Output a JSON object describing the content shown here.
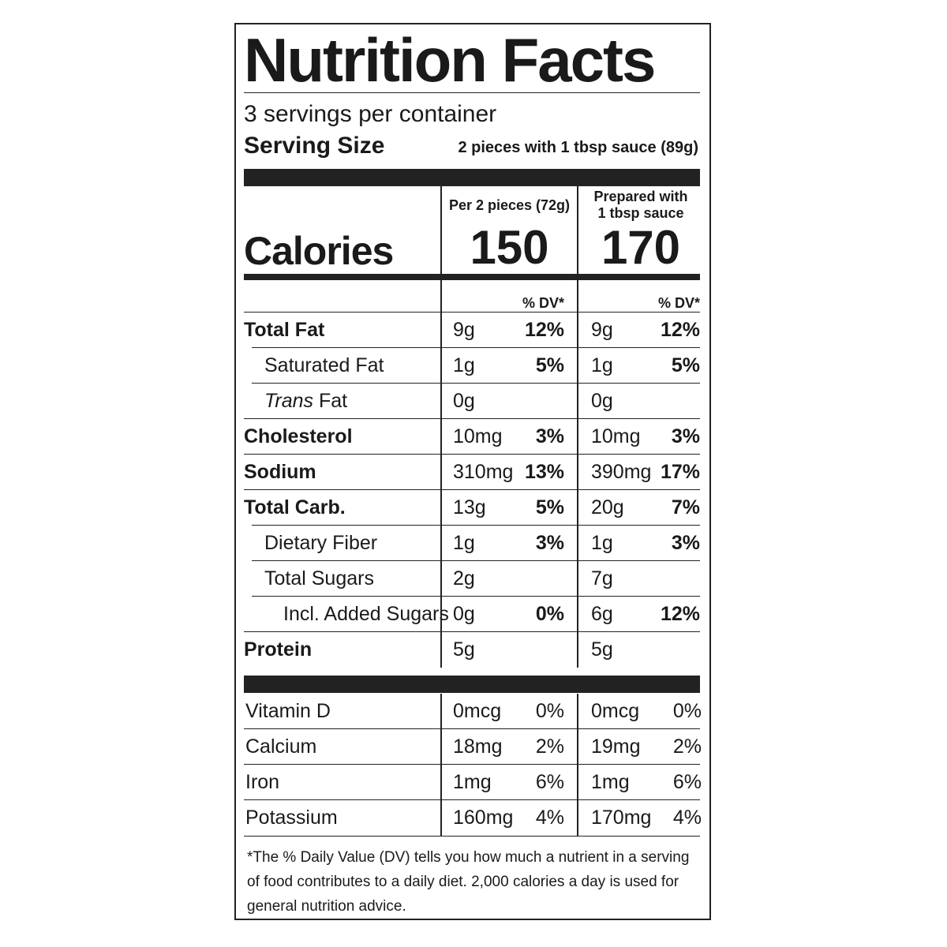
{
  "title": "Nutrition Facts",
  "servings_per_container": "3 servings per container",
  "serving_size_label": "Serving Size",
  "serving_size_value": "2 pieces with 1 tbsp sauce (89g)",
  "calories_label": "Calories",
  "columns": [
    {
      "header_line1": "Per 2 pieces (72g)",
      "header_line2": "",
      "calories": "150",
      "dv_header": "% DV*"
    },
    {
      "header_line1": "Prepared with",
      "header_line2": "1 tbsp sauce",
      "calories": "170",
      "dv_header": "% DV*"
    }
  ],
  "nutrients": [
    {
      "name": "Total Fat",
      "prefix": "",
      "bold": true,
      "indent": 0,
      "col1_amount": "9g",
      "col1_dv": "12%",
      "col2_amount": "9g",
      "col2_dv": "12%"
    },
    {
      "name": "Saturated Fat",
      "prefix": "",
      "bold": false,
      "indent": 1,
      "col1_amount": "1g",
      "col1_dv": "5%",
      "col2_amount": "1g",
      "col2_dv": "5%"
    },
    {
      "name": " Fat",
      "prefix": "Trans",
      "bold": false,
      "indent": 1,
      "col1_amount": "0g",
      "col1_dv": "",
      "col2_amount": "0g",
      "col2_dv": ""
    },
    {
      "name": "Cholesterol",
      "prefix": "",
      "bold": true,
      "indent": 0,
      "col1_amount": "10mg",
      "col1_dv": "3%",
      "col2_amount": "10mg",
      "col2_dv": "3%"
    },
    {
      "name": "Sodium",
      "prefix": "",
      "bold": true,
      "indent": 0,
      "col1_amount": "310mg",
      "col1_dv": "13%",
      "col2_amount": "390mg",
      "col2_dv": "17%"
    },
    {
      "name": "Total Carb.",
      "prefix": "",
      "bold": true,
      "indent": 0,
      "col1_amount": "13g",
      "col1_dv": "5%",
      "col2_amount": "20g",
      "col2_dv": "7%"
    },
    {
      "name": "Dietary Fiber",
      "prefix": "",
      "bold": false,
      "indent": 1,
      "col1_amount": "1g",
      "col1_dv": "3%",
      "col2_amount": "1g",
      "col2_dv": "3%"
    },
    {
      "name": "Total Sugars",
      "prefix": "",
      "bold": false,
      "indent": 1,
      "col1_amount": "2g",
      "col1_dv": "",
      "col2_amount": "7g",
      "col2_dv": ""
    },
    {
      "name": "Incl. Added Sugars",
      "prefix": "",
      "bold": false,
      "indent": 2,
      "col1_amount": "0g",
      "col1_dv": "0%",
      "col2_amount": "6g",
      "col2_dv": "12%"
    },
    {
      "name": "Protein",
      "prefix": "",
      "bold": true,
      "indent": 0,
      "col1_amount": "5g",
      "col1_dv": "",
      "col2_amount": "5g",
      "col2_dv": ""
    }
  ],
  "vitamins": [
    {
      "name": "Vitamin D",
      "col1_amount": "0mcg",
      "col1_dv": "0%",
      "col2_amount": "0mcg",
      "col2_dv": "0%"
    },
    {
      "name": "Calcium",
      "col1_amount": "18mg",
      "col1_dv": "2%",
      "col2_amount": "19mg",
      "col2_dv": "2%"
    },
    {
      "name": "Iron",
      "col1_amount": "1mg",
      "col1_dv": "6%",
      "col2_amount": "1mg",
      "col2_dv": "6%"
    },
    {
      "name": "Potassium",
      "col1_amount": "160mg",
      "col1_dv": "4%",
      "col2_amount": "170mg",
      "col2_dv": "4%"
    }
  ],
  "footnote": "*The % Daily Value (DV) tells you how much a nutrient in a serving of food contributes to a daily diet. 2,000 calories a day is used for general nutrition advice."
}
